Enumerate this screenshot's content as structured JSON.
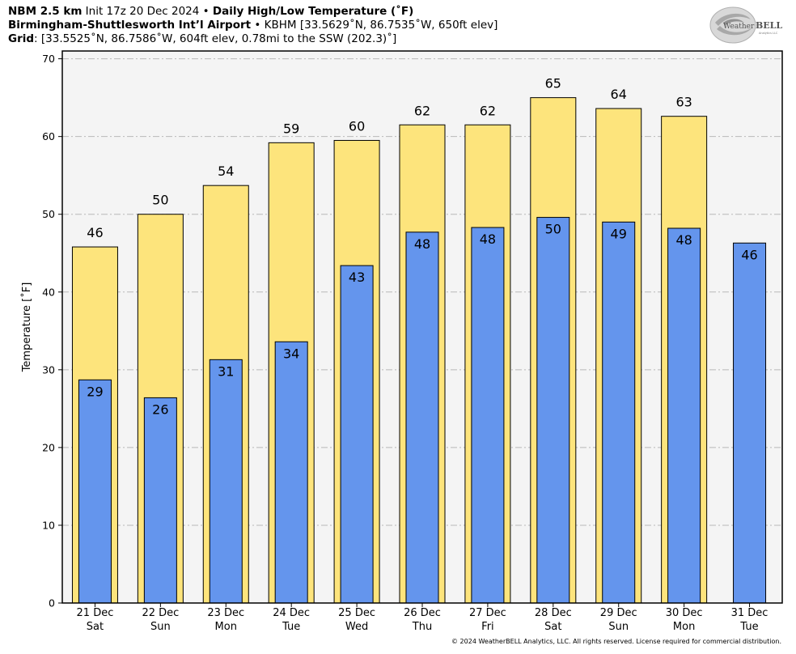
{
  "header": {
    "line1_bold1": "NBM 2.5 km",
    "line1_text1": " Init 17z 20 Dec 2024 • ",
    "line1_bold2": "Daily High/Low Temperature (˚F)",
    "line2_bold": "Birmingham-Shuttlesworth Int’l Airport",
    "line2_text": " • KBHM [33.5629˚N, 86.7535˚W, 650ft elev]",
    "line3_bold": "Grid",
    "line3_text": ": [33.5525˚N, 86.7586˚W, 604ft elev, 0.78mi to the SSW (202.3)˚]"
  },
  "logo": {
    "word1": "Weather",
    "word2": "BELL",
    "sub": "Analytics LLC"
  },
  "copyright": "© 2024 WeatherBELL Analytics, LLC. All rights reserved. License required for commercial distribution.",
  "chart_data": {
    "type": "bar",
    "categories": [
      "21 Dec",
      "22 Dec",
      "23 Dec",
      "24 Dec",
      "25 Dec",
      "26 Dec",
      "27 Dec",
      "28 Dec",
      "29 Dec",
      "30 Dec",
      "31 Dec"
    ],
    "days": [
      "Sat",
      "Sun",
      "Mon",
      "Tue",
      "Wed",
      "Thu",
      "Fri",
      "Sat",
      "Sun",
      "Mon",
      "Tue"
    ],
    "series": [
      {
        "name": "High",
        "values": [
          45.8,
          50.0,
          53.7,
          59.2,
          59.5,
          61.5,
          61.5,
          65.0,
          63.6,
          62.6,
          null
        ],
        "labels": [
          "46",
          "50",
          "54",
          "59",
          "60",
          "62",
          "62",
          "65",
          "64",
          "63",
          ""
        ],
        "color": "#fde47c"
      },
      {
        "name": "Low",
        "values": [
          28.7,
          26.4,
          31.3,
          33.6,
          43.4,
          47.7,
          48.3,
          49.6,
          49.0,
          48.2,
          46.3
        ],
        "labels": [
          "29",
          "26",
          "31",
          "34",
          "43",
          "48",
          "48",
          "50",
          "49",
          "48",
          "46"
        ],
        "color": "#6495ed"
      }
    ],
    "ylabel": "Temperature [˚F]",
    "ylim": [
      0,
      71
    ],
    "yticks": [
      0,
      10,
      20,
      30,
      40,
      50,
      60,
      70
    ],
    "grid": true,
    "legend": "none",
    "plot_background": "#f4f4f4"
  }
}
